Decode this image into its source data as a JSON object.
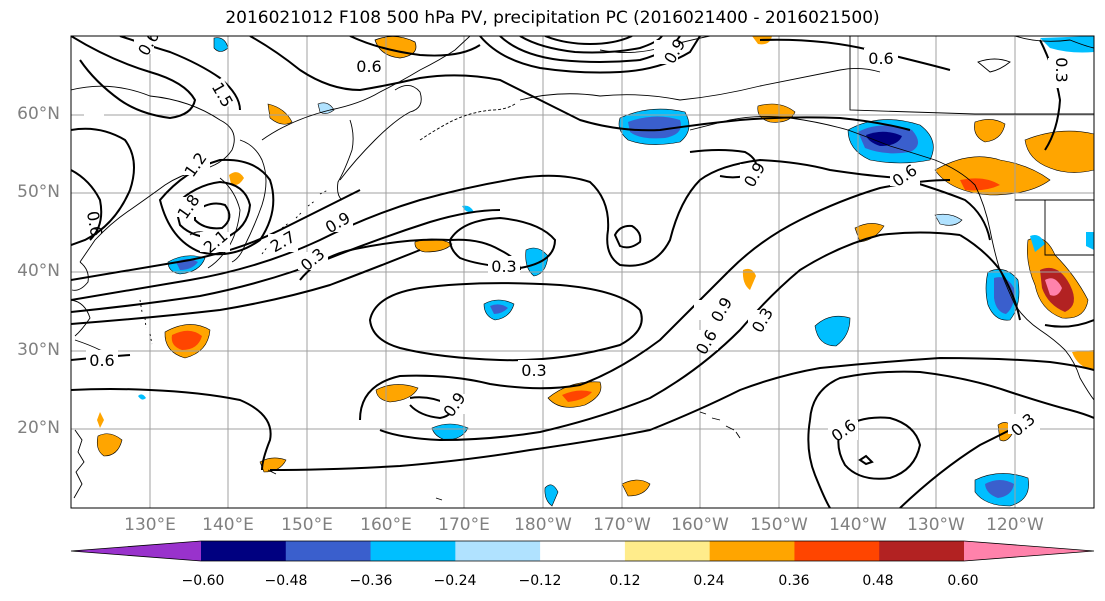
{
  "title": "2016021012 F108 500 hPa PV, precipitation PC (2016021400 - 2016021500)",
  "lat_labels": [
    "60°N",
    "50°N",
    "40°N",
    "30°N",
    "20°N"
  ],
  "lon_labels": [
    "130°E",
    "140°E",
    "150°E",
    "160°E",
    "170°E",
    "180°W",
    "170°W",
    "160°W",
    "150°W",
    "140°W",
    "130°W",
    "120°W"
  ],
  "contour_labels": [
    "0.6",
    "1.5",
    "1.2",
    "1.8",
    "2.1",
    "2.7",
    "0.3",
    "0.9",
    "0.3",
    "0.9",
    "0.6",
    "0.3",
    "0.6",
    "0.9",
    "0.6",
    "0.3",
    "0.6",
    "0.3",
    "0.6",
    "0.9",
    "0.6",
    "0.9",
    "0.6",
    "0.3"
  ],
  "colorbar": {
    "tick_labels": [
      "−0.60",
      "−0.48",
      "−0.36",
      "−0.24",
      "−0.12",
      "0.12",
      "0.24",
      "0.36",
      "0.48",
      "0.60"
    ],
    "colors": [
      "#9932cc",
      "#000080",
      "#3a5fcd",
      "#00bfff",
      "#b0e2ff",
      "#ffffff",
      "#ffec8b",
      "#ffa500",
      "#ff4500",
      "#b22222",
      "#ff82ab"
    ]
  }
}
